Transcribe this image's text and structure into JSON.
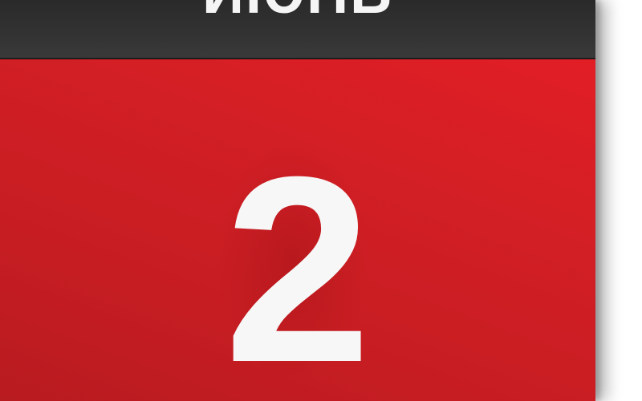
{
  "calendar": {
    "month": "ИЮНЬ",
    "day": "2"
  },
  "colors": {
    "header": "#2f2f2f",
    "panel": "#d21f25",
    "text": "#f7f7f7"
  }
}
